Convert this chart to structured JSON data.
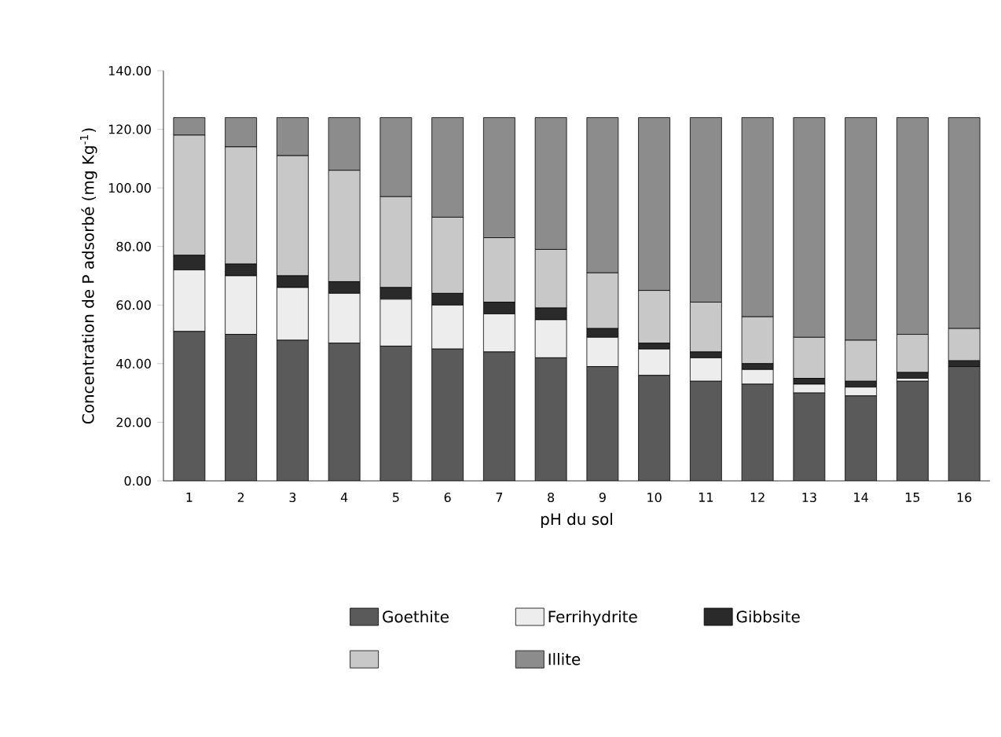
{
  "chart_data": {
    "type": "bar",
    "stacked": true,
    "ylabel": "Concentration de P adsorbé (mg Kg$^{-1}$)",
    "xlabel": "pH du sol",
    "categories": [
      "1",
      "2",
      "3",
      "4",
      "5",
      "6",
      "7",
      "8",
      "9",
      "10",
      "11",
      "12",
      "13",
      "14",
      "15",
      "16"
    ],
    "ylim": [
      0,
      140
    ],
    "yticks": [
      {
        "value": 0,
        "label": "0.00"
      },
      {
        "value": 20,
        "label": "20.00"
      },
      {
        "value": 40,
        "label": "40.00"
      },
      {
        "value": 60,
        "label": "60.00"
      },
      {
        "value": 80,
        "label": "80.00"
      },
      {
        "value": 100,
        "label": "100.00"
      },
      {
        "value": 120,
        "label": "120.00"
      },
      {
        "value": 140,
        "label": "140.00"
      }
    ],
    "legend": "bottom",
    "series": [
      {
        "name": "Goethite",
        "color": "#5a5a5a",
        "values": [
          51,
          50,
          48,
          47,
          46,
          45,
          44,
          42,
          39,
          36,
          34,
          33,
          30,
          29,
          34,
          39
        ]
      },
      {
        "name": "Ferrihydrite",
        "color": "#ededed",
        "values": [
          21,
          20,
          18,
          17,
          16,
          15,
          13,
          13,
          10,
          9,
          8,
          5,
          3,
          3,
          1,
          0
        ]
      },
      {
        "name": "Gibbsite",
        "color": "#2a2a2a",
        "values": [
          5,
          4,
          4,
          4,
          4,
          4,
          4,
          4,
          3,
          2,
          2,
          2,
          2,
          2,
          2,
          2
        ]
      },
      {
        "color": "#c8c8c8",
        "values": [
          41,
          40,
          41,
          38,
          31,
          26,
          22,
          20,
          19,
          18,
          17,
          16,
          14,
          14,
          13,
          11
        ]
      },
      {
        "name": "Illite",
        "color": "#8c8c8c",
        "values": [
          6,
          10,
          13,
          18,
          27,
          34,
          41,
          45,
          53,
          59,
          63,
          68,
          75,
          76,
          74,
          72
        ]
      }
    ]
  }
}
